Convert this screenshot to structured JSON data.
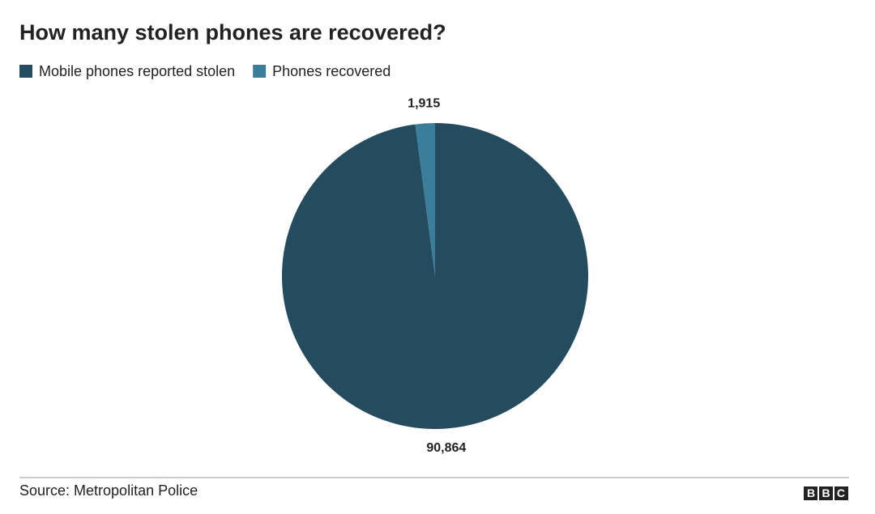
{
  "chart_data": {
    "type": "pie",
    "title": "How many stolen phones are recovered?",
    "categories": [
      "Mobile phones reported stolen",
      "Phones recovered"
    ],
    "values": [
      90864,
      1915
    ],
    "value_labels": [
      "90,864",
      "1,915"
    ],
    "colors": [
      "#244b5e",
      "#3b7e9c"
    ],
    "source": "Source: Metropolitan Police",
    "logo": "BBC"
  }
}
